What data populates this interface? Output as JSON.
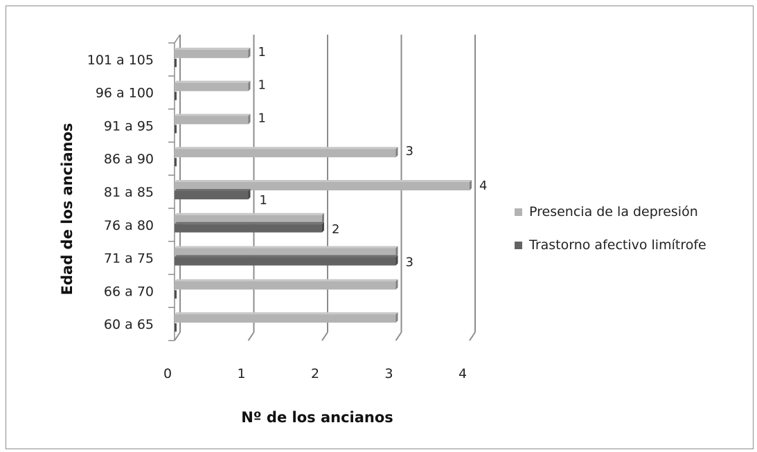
{
  "chart_data": {
    "type": "bar",
    "orientation": "horizontal",
    "style": "3d-clustered",
    "categories": [
      "60 a 65",
      "66 a 70",
      "71 a 75",
      "76 a 80",
      "81 a 85",
      "86 a 90",
      "91 a 95",
      "96 a 100",
      "101 a 105"
    ],
    "series": [
      {
        "name": "Presencia de la depresión",
        "values": [
          3,
          3,
          3,
          2,
          4,
          3,
          1,
          1,
          1
        ],
        "color": "#b3b3b3"
      },
      {
        "name": "Trastorno afectivo limítrofe",
        "values": [
          0,
          0,
          3,
          2,
          1,
          0,
          0,
          0,
          0
        ],
        "color": "#636363"
      }
    ],
    "data_labels": [
      {
        "category": "71 a 75",
        "text": "3"
      },
      {
        "category": "76 a 80",
        "text": "2"
      },
      {
        "category": "81 a 85",
        "text": "4"
      },
      {
        "category": "81 a 85",
        "text": "1"
      },
      {
        "category": "86 a 90",
        "text": "3"
      },
      {
        "category": "91 a 95",
        "text": "1"
      },
      {
        "category": "96 a 100",
        "text": "1"
      },
      {
        "category": "101 a 105",
        "text": "1"
      }
    ],
    "xlabel": "Nº de los ancianos",
    "ylabel": "Edad de los ancianos",
    "xlim": [
      0,
      4
    ],
    "xticks": [
      "0",
      "1",
      "2",
      "3",
      "4"
    ],
    "grid": true,
    "legend_position": "right"
  }
}
